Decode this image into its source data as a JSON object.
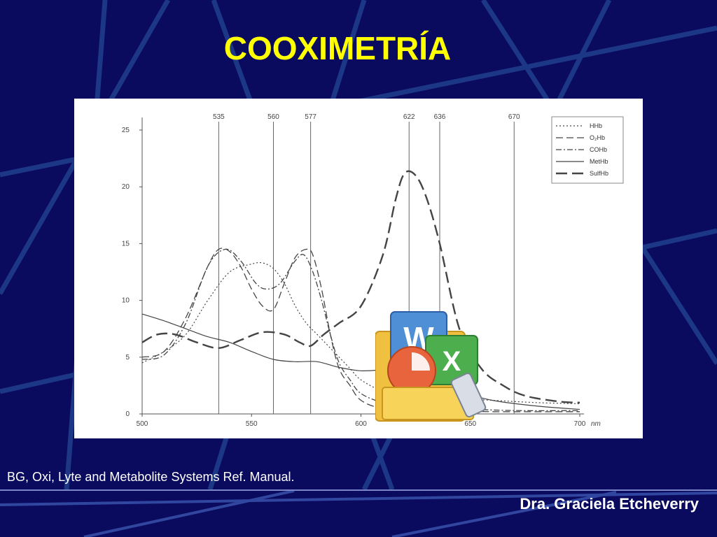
{
  "slide": {
    "title": "COOXIMETRÍA",
    "source_note": "BG, Oxi, Lyte and Metabolite Systems Ref. Manual.",
    "author": "Dra. Graciela Etcheverry"
  },
  "colors": {
    "background": "#0a0a5e",
    "title": "#ffff00",
    "text": "#ffffff",
    "plot_ink": "#555555"
  },
  "icons": [
    "microsoft-office-logo-icon"
  ],
  "chart_data": {
    "type": "line",
    "xlabel": "nm",
    "ylabel": "",
    "xlim": [
      500,
      700
    ],
    "ylim": [
      0,
      25
    ],
    "x_ticks": [
      500,
      550,
      600,
      650,
      700
    ],
    "y_ticks": [
      0,
      5,
      10,
      15,
      20,
      25
    ],
    "reference_lines": [
      535,
      560,
      577,
      622,
      636,
      670
    ],
    "legend_position": "top-right",
    "grid": false,
    "series": [
      {
        "name": "HHb",
        "dash": "dotted",
        "points": [
          [
            500,
            4.5
          ],
          [
            510,
            5.5
          ],
          [
            520,
            7
          ],
          [
            530,
            10
          ],
          [
            540,
            12.5
          ],
          [
            550,
            13.2
          ],
          [
            555,
            13.3
          ],
          [
            560,
            12.8
          ],
          [
            565,
            11.5
          ],
          [
            570,
            9.5
          ],
          [
            575,
            8
          ],
          [
            580,
            7
          ],
          [
            585,
            6
          ],
          [
            590,
            5
          ],
          [
            595,
            4
          ],
          [
            600,
            3
          ],
          [
            610,
            2
          ],
          [
            620,
            1.7
          ],
          [
            640,
            1.4
          ],
          [
            660,
            1.2
          ],
          [
            680,
            1
          ],
          [
            700,
            0.9
          ]
        ]
      },
      {
        "name": "O₂Hb",
        "dash": "longdash",
        "points": [
          [
            500,
            5
          ],
          [
            510,
            5.5
          ],
          [
            520,
            8.5
          ],
          [
            530,
            13
          ],
          [
            535,
            14.5
          ],
          [
            540,
            14.3
          ],
          [
            545,
            13
          ],
          [
            550,
            11
          ],
          [
            555,
            9.5
          ],
          [
            560,
            9.2
          ],
          [
            565,
            11.5
          ],
          [
            570,
            13.8
          ],
          [
            575,
            14.5
          ],
          [
            578,
            14
          ],
          [
            582,
            11
          ],
          [
            586,
            7
          ],
          [
            590,
            4
          ],
          [
            595,
            2.5
          ],
          [
            600,
            1.2
          ],
          [
            610,
            0.5
          ],
          [
            630,
            0.3
          ],
          [
            660,
            0.2
          ],
          [
            700,
            0.2
          ]
        ]
      },
      {
        "name": "COHb",
        "dash": "dashdot",
        "points": [
          [
            500,
            4.8
          ],
          [
            510,
            5.2
          ],
          [
            520,
            8
          ],
          [
            530,
            13
          ],
          [
            538,
            14.5
          ],
          [
            545,
            13.5
          ],
          [
            552,
            11.5
          ],
          [
            557,
            11
          ],
          [
            563,
            11.5
          ],
          [
            570,
            13.5
          ],
          [
            574,
            14
          ],
          [
            578,
            12.5
          ],
          [
            582,
            10
          ],
          [
            586,
            7
          ],
          [
            590,
            4.5
          ],
          [
            595,
            3
          ],
          [
            600,
            1.8
          ],
          [
            610,
            1
          ],
          [
            620,
            0.8
          ],
          [
            640,
            0.5
          ],
          [
            670,
            0.3
          ],
          [
            700,
            0.3
          ]
        ]
      },
      {
        "name": "MetHb",
        "dash": "solid",
        "points": [
          [
            500,
            8.8
          ],
          [
            510,
            8.2
          ],
          [
            520,
            7.5
          ],
          [
            530,
            6.8
          ],
          [
            540,
            6.3
          ],
          [
            550,
            5.5
          ],
          [
            560,
            4.8
          ],
          [
            570,
            4.6
          ],
          [
            580,
            4.6
          ],
          [
            590,
            4.1
          ],
          [
            600,
            3.8
          ],
          [
            610,
            3.9
          ],
          [
            620,
            4.1
          ],
          [
            630,
            4.1
          ],
          [
            640,
            3
          ],
          [
            650,
            1.8
          ],
          [
            660,
            1.2
          ],
          [
            680,
            0.7
          ],
          [
            700,
            0.4
          ]
        ]
      },
      {
        "name": "SulfHb",
        "dash": "heavydash",
        "points": [
          [
            500,
            6.3
          ],
          [
            507,
            7
          ],
          [
            515,
            7
          ],
          [
            525,
            6.3
          ],
          [
            535,
            5.8
          ],
          [
            545,
            6.5
          ],
          [
            555,
            7.2
          ],
          [
            565,
            7
          ],
          [
            572,
            6.3
          ],
          [
            577,
            6
          ],
          [
            583,
            7
          ],
          [
            590,
            8
          ],
          [
            600,
            9.5
          ],
          [
            610,
            14
          ],
          [
            616,
            19
          ],
          [
            620,
            21.2
          ],
          [
            625,
            21
          ],
          [
            630,
            19
          ],
          [
            636,
            15
          ],
          [
            645,
            7.5
          ],
          [
            655,
            4
          ],
          [
            665,
            2.5
          ],
          [
            675,
            1.6
          ],
          [
            690,
            1.1
          ],
          [
            700,
            1
          ]
        ]
      }
    ]
  }
}
